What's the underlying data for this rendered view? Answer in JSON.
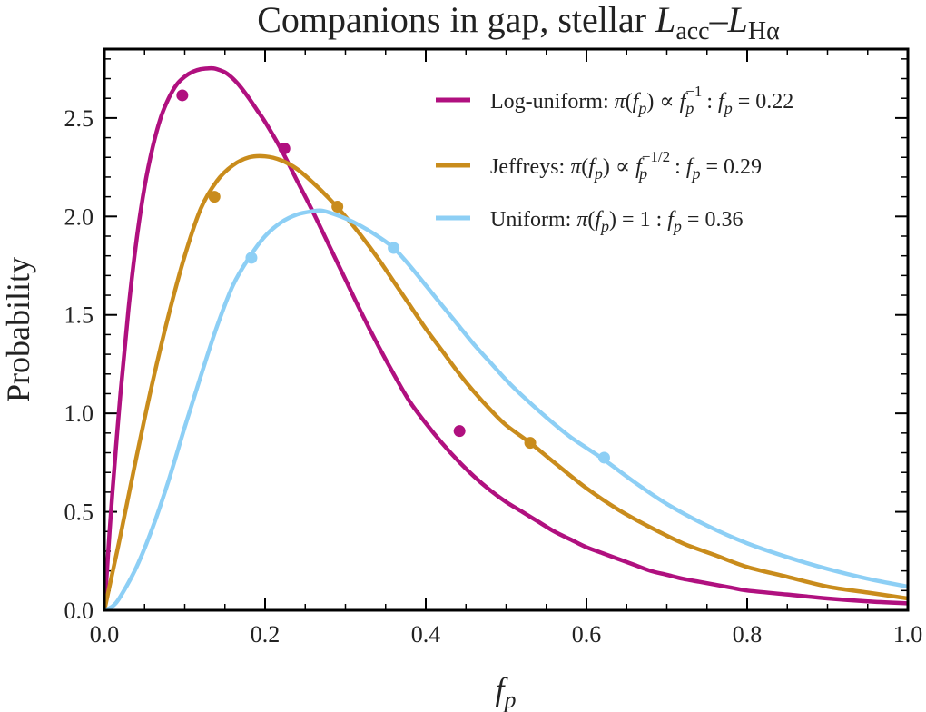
{
  "chart_data": {
    "type": "line",
    "title": "Companions in gap, stellar L_acc–L_Hα",
    "title_parts": {
      "main": "Companions in gap, stellar ",
      "L1": "L",
      "L1_sub": "acc",
      "dash": "–",
      "L2": "L",
      "L2_sub": "Hα"
    },
    "xlabel": "f_p",
    "xlabel_parts": {
      "var": "f",
      "sub": "p"
    },
    "ylabel": "Probability",
    "xlim": [
      0.0,
      1.0
    ],
    "ylim": [
      0.0,
      2.85
    ],
    "x_ticks": [
      0.0,
      0.2,
      0.4,
      0.6,
      0.8,
      1.0
    ],
    "x_tick_labels": [
      "0.0",
      "0.2",
      "0.4",
      "0.6",
      "0.8",
      "1.0"
    ],
    "x_minor_step": 0.05,
    "y_ticks": [
      0.0,
      0.5,
      1.0,
      1.5,
      2.0,
      2.5
    ],
    "y_tick_labels": [
      "0.0",
      "0.5",
      "1.0",
      "1.5",
      "2.0",
      "2.5"
    ],
    "y_minor_step": 0.1,
    "legend_position": "top-right",
    "series": [
      {
        "name": "Log-uniform: π(f_p) ∝ f_p^-1 : f_p = 0.22",
        "legend_prefix": "Log-uniform: ",
        "legend_exp": "−1",
        "legend_value": "0.22",
        "color": "#b0107f",
        "x": [
          0.0,
          0.005,
          0.01,
          0.02,
          0.03,
          0.04,
          0.05,
          0.06,
          0.07,
          0.08,
          0.09,
          0.1,
          0.11,
          0.12,
          0.13,
          0.135,
          0.14,
          0.15,
          0.16,
          0.17,
          0.18,
          0.19,
          0.2,
          0.22,
          0.24,
          0.26,
          0.28,
          0.3,
          0.32,
          0.34,
          0.36,
          0.38,
          0.4,
          0.42,
          0.44,
          0.46,
          0.48,
          0.5,
          0.52,
          0.54,
          0.56,
          0.58,
          0.6,
          0.62,
          0.64,
          0.66,
          0.68,
          0.7,
          0.72,
          0.74,
          0.76,
          0.78,
          0.8,
          0.85,
          0.9,
          0.95,
          1.0
        ],
        "y": [
          0.0,
          0.31,
          0.6,
          1.1,
          1.53,
          1.88,
          2.15,
          2.35,
          2.5,
          2.6,
          2.67,
          2.71,
          2.735,
          2.748,
          2.752,
          2.752,
          2.748,
          2.732,
          2.7,
          2.655,
          2.6,
          2.54,
          2.48,
          2.34,
          2.18,
          2.02,
          1.85,
          1.68,
          1.51,
          1.35,
          1.2,
          1.06,
          0.95,
          0.85,
          0.76,
          0.68,
          0.61,
          0.55,
          0.5,
          0.45,
          0.4,
          0.36,
          0.32,
          0.29,
          0.26,
          0.23,
          0.2,
          0.18,
          0.16,
          0.145,
          0.13,
          0.115,
          0.1,
          0.08,
          0.06,
          0.045,
          0.035
        ],
        "markers_x": [
          0.097,
          0.224,
          0.442
        ],
        "markers_y": [
          2.615,
          2.345,
          0.91
        ]
      },
      {
        "name": "Jeffreys: π(f_p) ∝ f_p^-1/2 : f_p = 0.29",
        "legend_prefix": "Jeffreys: ",
        "legend_exp": "−1/2",
        "legend_value": "0.29",
        "color": "#c98c1c",
        "x": [
          0.0,
          0.01,
          0.02,
          0.04,
          0.06,
          0.08,
          0.1,
          0.12,
          0.14,
          0.16,
          0.18,
          0.2,
          0.22,
          0.24,
          0.26,
          0.28,
          0.3,
          0.32,
          0.34,
          0.36,
          0.38,
          0.4,
          0.42,
          0.44,
          0.46,
          0.48,
          0.5,
          0.53,
          0.56,
          0.6,
          0.64,
          0.68,
          0.72,
          0.76,
          0.8,
          0.85,
          0.9,
          0.95,
          1.0
        ],
        "y": [
          0.0,
          0.19,
          0.38,
          0.78,
          1.16,
          1.5,
          1.8,
          2.04,
          2.18,
          2.26,
          2.3,
          2.305,
          2.285,
          2.24,
          2.17,
          2.09,
          2.0,
          1.9,
          1.79,
          1.67,
          1.55,
          1.43,
          1.32,
          1.21,
          1.11,
          1.02,
          0.94,
          0.85,
          0.75,
          0.62,
          0.51,
          0.42,
          0.34,
          0.28,
          0.22,
          0.17,
          0.12,
          0.09,
          0.06
        ],
        "markers_x": [
          0.137,
          0.29,
          0.53
        ],
        "markers_y": [
          2.1,
          2.05,
          0.85
        ]
      },
      {
        "name": "Uniform: π(f_p) = 1 : f_p = 0.36",
        "legend_prefix": "Uniform: ",
        "legend_exp": "",
        "legend_value": "0.36",
        "color": "#8dcff5",
        "x": [
          0.0,
          0.01,
          0.02,
          0.04,
          0.06,
          0.08,
          0.1,
          0.12,
          0.14,
          0.16,
          0.18,
          0.2,
          0.22,
          0.24,
          0.26,
          0.27,
          0.28,
          0.3,
          0.32,
          0.34,
          0.36,
          0.38,
          0.4,
          0.42,
          0.44,
          0.46,
          0.48,
          0.5,
          0.52,
          0.55,
          0.58,
          0.62,
          0.66,
          0.7,
          0.75,
          0.8,
          0.85,
          0.9,
          0.95,
          1.0
        ],
        "y": [
          0.0,
          0.02,
          0.07,
          0.22,
          0.42,
          0.66,
          0.93,
          1.19,
          1.44,
          1.65,
          1.79,
          1.9,
          1.97,
          2.01,
          2.027,
          2.03,
          2.02,
          1.99,
          1.95,
          1.9,
          1.84,
          1.75,
          1.65,
          1.55,
          1.45,
          1.35,
          1.26,
          1.17,
          1.09,
          0.98,
          0.88,
          0.77,
          0.65,
          0.54,
          0.43,
          0.34,
          0.27,
          0.21,
          0.16,
          0.12
        ],
        "markers_x": [
          0.183,
          0.36,
          0.622
        ],
        "markers_y": [
          1.79,
          1.84,
          0.775
        ]
      }
    ]
  }
}
